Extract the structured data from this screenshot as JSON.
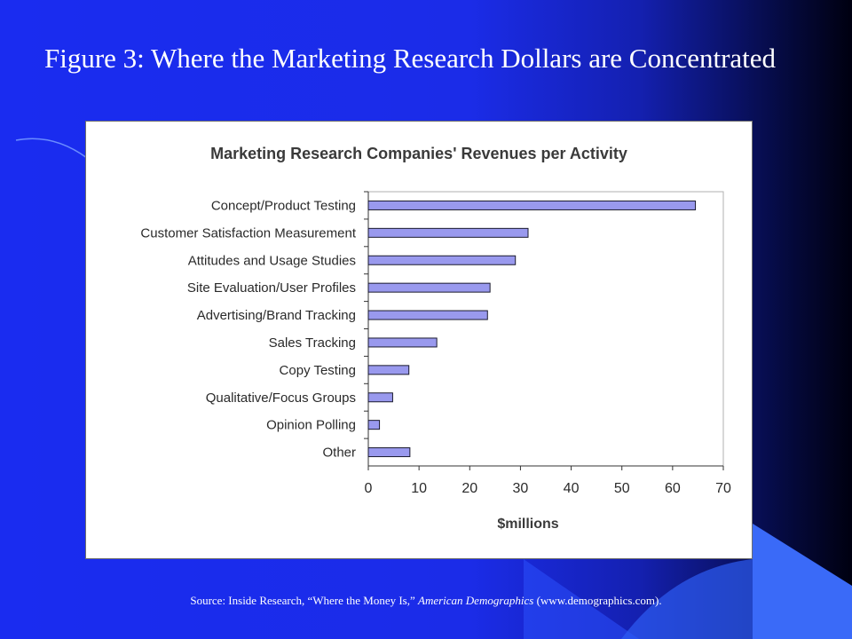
{
  "slide": {
    "title": "Figure 3: Where the Marketing Research Dollars are Concentrated",
    "source_prefix": "Source: Inside Research, “Where the Money Is,” ",
    "source_italic": "American Demographics",
    "source_suffix": " (www.demographics.com)."
  },
  "colors": {
    "bar_fill": "#9999ee",
    "bar_stroke": "#1a1a2e",
    "background": "#1a2cf0"
  },
  "chart_data": {
    "type": "bar",
    "orientation": "horizontal",
    "title": "Marketing Research Companies' Revenues per Activity",
    "xlabel": "$millions",
    "ylabel": "",
    "xlim": [
      0,
      70
    ],
    "xticks": [
      0,
      10,
      20,
      30,
      40,
      50,
      60,
      70
    ],
    "grid": false,
    "legend": "none",
    "categories": [
      "Concept/Product Testing",
      "Customer Satisfaction Measurement",
      "Attitudes and Usage Studies",
      "Site Evaluation/User Profiles",
      "Advertising/Brand Tracking",
      "Sales Tracking",
      "Copy Testing",
      "Qualitative/Focus Groups",
      "Opinion Polling",
      "Other"
    ],
    "values": [
      64.5,
      31.5,
      29,
      24,
      23.5,
      13.5,
      8,
      4.8,
      2.2,
      8.2
    ]
  }
}
